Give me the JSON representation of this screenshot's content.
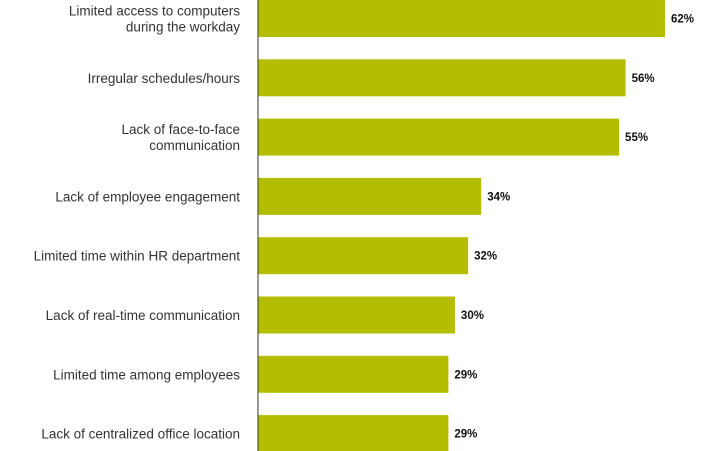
{
  "chart_data": {
    "type": "bar",
    "orientation": "horizontal",
    "title": "",
    "xlabel": "",
    "ylabel": "",
    "xlim": [
      0,
      62
    ],
    "grid": false,
    "legend": "none",
    "bar_color": "#b5bd00",
    "categories": [
      [
        "Limited access to computers",
        "during the workday"
      ],
      [
        "Irregular schedules/hours"
      ],
      [
        "Lack of face-to-face",
        "communication"
      ],
      [
        "Lack of employee engagement"
      ],
      [
        "Limited time within HR department"
      ],
      [
        "Lack of real-time communication"
      ],
      [
        "Limited time among employees"
      ],
      [
        "Lack of centralized office location"
      ]
    ],
    "values": [
      62,
      56,
      55,
      34,
      32,
      30,
      29,
      29
    ],
    "value_labels": [
      "62%",
      "56%",
      "55%",
      "34%",
      "32%",
      "30%",
      "29%",
      "29%"
    ]
  }
}
